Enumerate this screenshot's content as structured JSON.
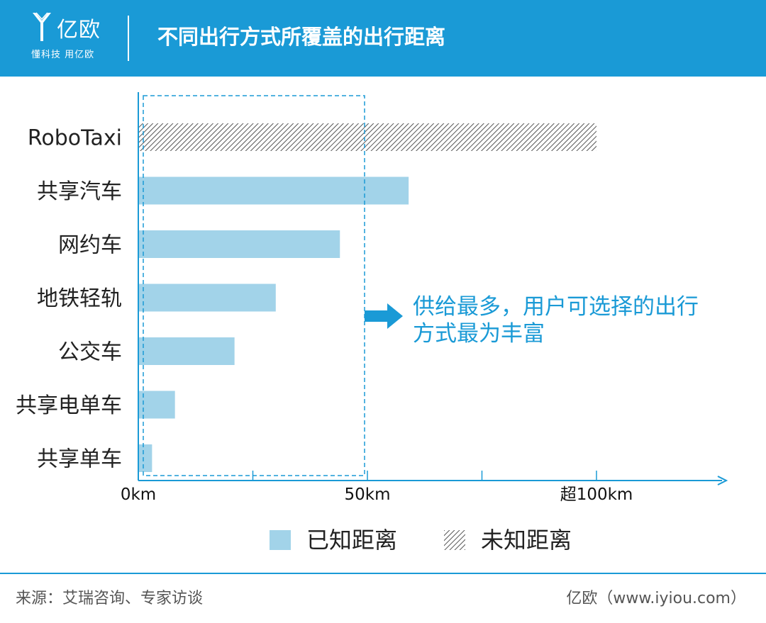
{
  "header": {
    "logo_text": "亿欧",
    "logo_slogan": "懂科技 用亿欧",
    "title": "不同出行方式所覆盖的出行距离"
  },
  "annotation": {
    "line1": "供给最多，用户可选择的出行",
    "line2": "方式最为丰富"
  },
  "footer": {
    "source": "来源：艾瑞咨询、专家访谈",
    "credit": "亿欧（www.iyiou.com）"
  },
  "colors": {
    "header": "#1a9ad6",
    "known_bar": "#a2d3e9",
    "unknown_hatch": "#555555",
    "accent": "#1a9ad6"
  },
  "chart_data": {
    "type": "bar",
    "orientation": "horizontal",
    "categories": [
      "RoboTaxi",
      "共享汽车",
      "网约车",
      "地铁轻轨",
      "公交车",
      "共享电单车",
      "共享单车"
    ],
    "series": [
      {
        "name": "已知距离",
        "values": [
          0,
          59,
          44,
          30,
          21,
          8,
          3
        ]
      },
      {
        "name": "未知距离",
        "values": [
          100,
          0,
          0,
          0,
          0,
          0,
          0
        ]
      }
    ],
    "x_tick_labels": [
      {
        "value": 0,
        "label": "0km"
      },
      {
        "value": 50,
        "label": "50km"
      },
      {
        "value": 100,
        "label": "超100km"
      }
    ],
    "x_minor_ticks": [
      25,
      75
    ],
    "xlim": [
      0,
      130
    ],
    "highlight_range": [
      0,
      50
    ],
    "legend": [
      "已知距离",
      "未知距离"
    ],
    "legend_position": "bottom",
    "grid": false
  }
}
